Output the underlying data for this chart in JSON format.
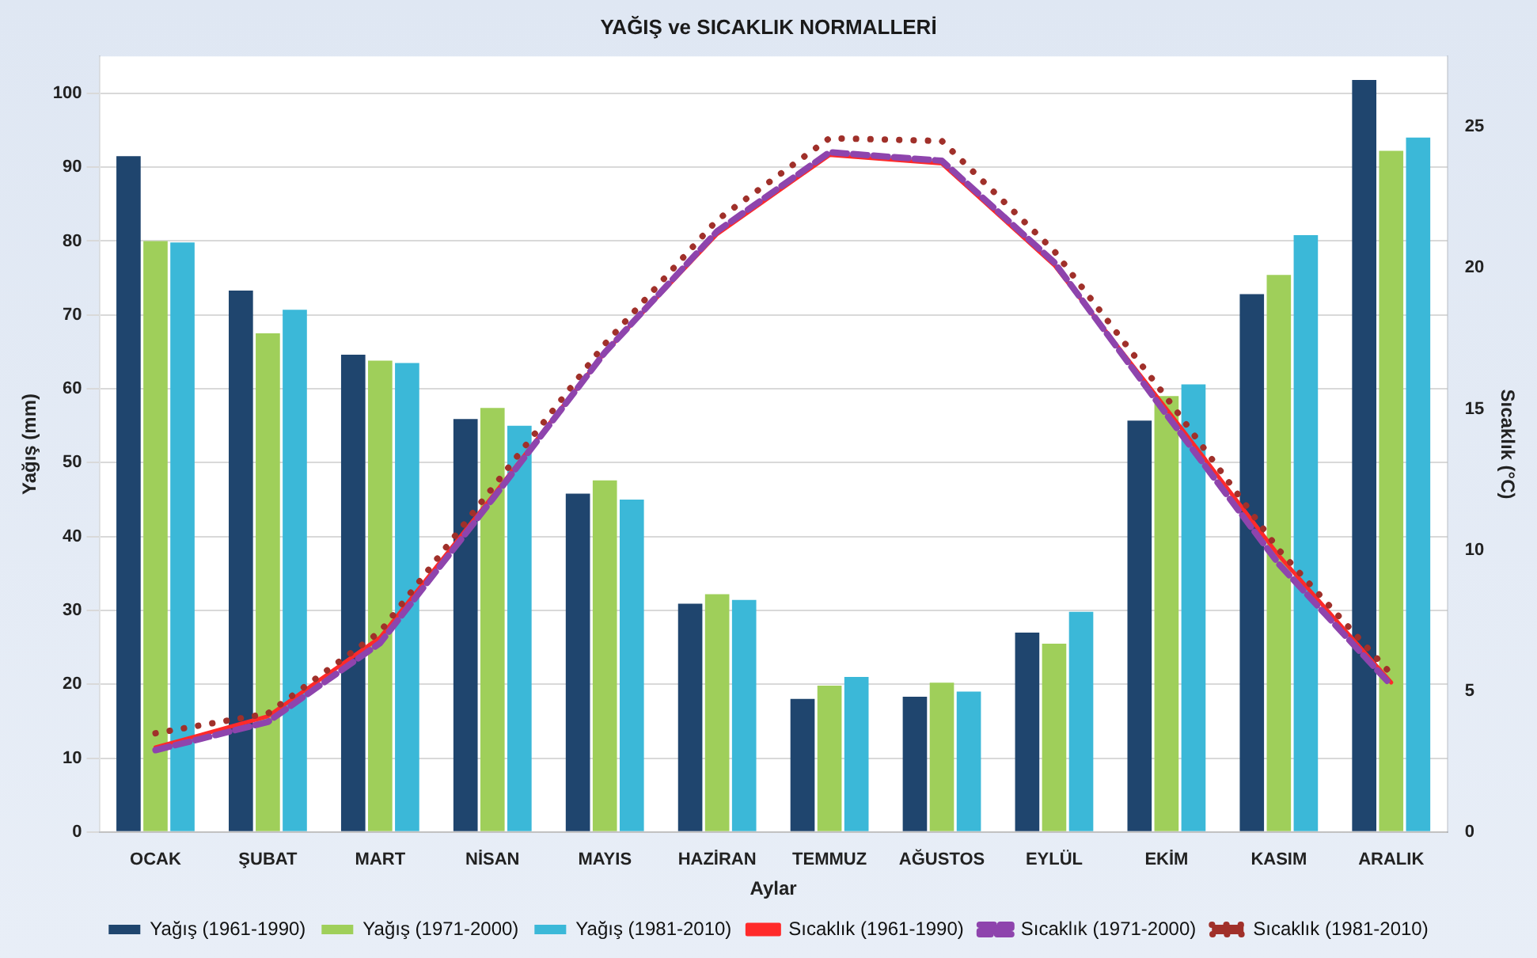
{
  "chart_data": {
    "type": "bar",
    "title": "YAĞIŞ ve SICAKLIK NORMALLERİ",
    "xlabel": "Aylar",
    "ylabel": "Yağış (mm)",
    "y2label": "Sıcaklık (°C)",
    "categories": [
      "OCAK",
      "ŞUBAT",
      "MART",
      "NİSAN",
      "MAYIS",
      "HAZİRAN",
      "TEMMUZ",
      "AĞUSTOS",
      "EYLÜL",
      "EKİM",
      "KASIM",
      "ARALIK"
    ],
    "series": [
      {
        "name": "Yağış (1961-1990)",
        "color": "#1f456e",
        "values": [
          91.5,
          73.3,
          64.6,
          55.9,
          45.8,
          30.9,
          18,
          18.3,
          27,
          55.7,
          72.8,
          101.8
        ]
      },
      {
        "name": "Yağış (1971-2000)",
        "color": "#9fcf5a",
        "values": [
          80,
          67.5,
          63.8,
          57.4,
          47.6,
          32.2,
          19.8,
          20.2,
          25.5,
          59,
          75.4,
          92.2
        ]
      },
      {
        "name": "Yağış (1981-2010)",
        "color": "#3bb8d8",
        "values": [
          79.8,
          70.7,
          63.5,
          55,
          45,
          31.4,
          21,
          19,
          29.8,
          60.6,
          80.8,
          94
        ]
      },
      {
        "name": "Sıcaklık (1961-1990)",
        "type": "line",
        "axis": "y2",
        "line_style": "solid",
        "color": "#ff2a2a",
        "values": [
          3.0,
          4.1,
          6.9,
          11.9,
          17.0,
          21.2,
          24.0,
          23.7,
          20.1,
          15.0,
          9.8,
          5.3
        ]
      },
      {
        "name": "Sıcaklık (1971-2000)",
        "type": "line",
        "axis": "y2",
        "line_style": "dashed",
        "color": "#8e44ad",
        "values": [
          2.9,
          3.9,
          6.7,
          11.8,
          17.0,
          21.3,
          24.1,
          23.8,
          20.2,
          14.8,
          9.5,
          5.2
        ]
      },
      {
        "name": "Sıcaklık (1981-2010)",
        "type": "line",
        "axis": "y2",
        "line_style": "dotted",
        "color": "#a0302a",
        "values": [
          3.5,
          4.2,
          7.1,
          12.2,
          17.3,
          21.7,
          24.6,
          24.5,
          20.6,
          15.4,
          10.0,
          5.6
        ]
      }
    ],
    "ylim": [
      0,
      105
    ],
    "yticks": [
      0,
      10,
      20,
      30,
      40,
      50,
      60,
      70,
      80,
      90,
      100
    ],
    "y2lim": [
      0,
      27.5
    ],
    "y2ticks": [
      0,
      5,
      10,
      15,
      20,
      25
    ],
    "grid": "y",
    "legend": "bottom"
  }
}
